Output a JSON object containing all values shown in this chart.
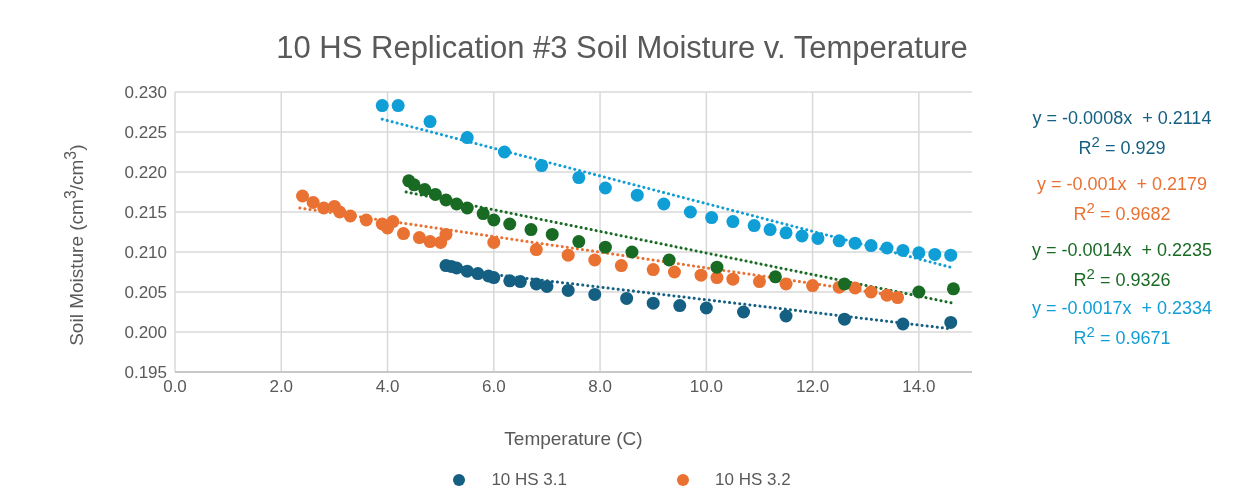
{
  "chart_data": {
    "type": "scatter",
    "title": "10 HS Replication #3 Soil Moisture v. Temperature",
    "xlabel": "Temperature  (C)",
    "ylabel": "Soil Moisture  (cm$^{3}$/cm$^{3}$)",
    "xlim": [
      0,
      15
    ],
    "xticks": [
      {
        "value": 0,
        "label": "0.0"
      },
      {
        "value": 2,
        "label": "2.0"
      },
      {
        "value": 4,
        "label": "4.0"
      },
      {
        "value": 6,
        "label": "6.0"
      },
      {
        "value": 8,
        "label": "8.0"
      },
      {
        "value": 10,
        "label": "10.0"
      },
      {
        "value": 12,
        "label": "12.0"
      },
      {
        "value": 14,
        "label": "14.0"
      }
    ],
    "ylim": [
      0.195,
      0.23
    ],
    "yticks": [
      {
        "value": 0.195,
        "label": "0.195"
      },
      {
        "value": 0.2,
        "label": "0.200"
      },
      {
        "value": 0.205,
        "label": "0.205"
      },
      {
        "value": 0.21,
        "label": "0.210"
      },
      {
        "value": 0.215,
        "label": "0.215"
      },
      {
        "value": 0.22,
        "label": "0.220"
      },
      {
        "value": 0.225,
        "label": "0.225"
      },
      {
        "value": 0.23,
        "label": "0.230"
      }
    ],
    "grid": true,
    "legend": "bottom",
    "marker": "circle",
    "series": [
      {
        "name": "10 HS 3.1",
        "color": "#156082",
        "x": [
          5.1,
          5.2,
          5.3,
          5.5,
          5.7,
          5.9,
          6.0,
          6.3,
          6.5,
          6.8,
          7.0,
          7.4,
          7.9,
          8.5,
          9.0,
          9.5,
          10.0,
          10.7,
          11.5,
          12.6,
          13.7,
          14.6
        ],
        "values": [
          0.2083,
          0.2082,
          0.208,
          0.2076,
          0.2073,
          0.207,
          0.2068,
          0.2064,
          0.2063,
          0.206,
          0.2057,
          0.2052,
          0.2047,
          0.2042,
          0.2036,
          0.2033,
          0.203,
          0.2025,
          0.202,
          0.2016,
          0.201,
          0.2012
        ]
      },
      {
        "name": "10 HS 3.2",
        "color": "#e97132",
        "x": [
          2.4,
          2.6,
          2.8,
          3.0,
          3.1,
          3.3,
          3.6,
          3.9,
          4.0,
          4.1,
          4.3,
          4.6,
          4.8,
          5.0,
          5.1,
          6.0,
          6.8,
          7.4,
          7.9,
          8.4,
          9.0,
          9.4,
          9.9,
          10.2,
          10.5,
          11.0,
          11.5,
          12.0,
          12.5,
          12.8,
          13.1,
          13.4,
          13.6
        ],
        "values": [
          0.217,
          0.2162,
          0.2155,
          0.2157,
          0.215,
          0.2145,
          0.214,
          0.2135,
          0.213,
          0.2138,
          0.2123,
          0.2118,
          0.2113,
          0.2112,
          0.2122,
          0.2112,
          0.2103,
          0.2096,
          0.209,
          0.2083,
          0.2078,
          0.2075,
          0.2071,
          0.2068,
          0.2066,
          0.2063,
          0.206,
          0.2058,
          0.2056,
          0.2055,
          0.205,
          0.2046,
          0.2043
        ]
      },
      {
        "color": "#196b24",
        "x": [
          4.4,
          4.5,
          4.7,
          4.9,
          5.1,
          5.3,
          5.5,
          5.8,
          6.0,
          6.3,
          6.7,
          7.1,
          7.6,
          8.1,
          8.6,
          9.3,
          10.2,
          11.3,
          12.6,
          14.0,
          14.65
        ],
        "values": [
          0.2189,
          0.2184,
          0.2178,
          0.2172,
          0.2165,
          0.216,
          0.2155,
          0.2148,
          0.214,
          0.2135,
          0.2128,
          0.2122,
          0.2113,
          0.2106,
          0.21,
          0.209,
          0.2081,
          0.2069,
          0.206,
          0.205,
          0.2054
        ]
      },
      {
        "color": "#0f9ed5",
        "x": [
          3.9,
          4.2,
          4.8,
          5.5,
          6.2,
          6.9,
          7.6,
          8.1,
          8.7,
          9.2,
          9.7,
          10.1,
          10.5,
          10.9,
          11.2,
          11.5,
          11.8,
          12.1,
          12.5,
          12.8,
          13.1,
          13.4,
          13.7,
          14.0,
          14.3,
          14.6
        ],
        "values": [
          0.2283,
          0.2283,
          0.2263,
          0.2243,
          0.2225,
          0.2208,
          0.2193,
          0.218,
          0.2171,
          0.216,
          0.215,
          0.2143,
          0.2138,
          0.2133,
          0.2128,
          0.2124,
          0.212,
          0.2117,
          0.2114,
          0.2111,
          0.2108,
          0.2105,
          0.2102,
          0.2099,
          0.2097,
          0.2096
        ]
      },
      {
        "type": "line",
        "line_style": "dotted",
        "marker": "none",
        "color": "#156082",
        "x": [
          5.1,
          14.6
        ],
        "values": [
          0.2079,
          0.2004
        ]
      },
      {
        "type": "line",
        "line_style": "dotted",
        "marker": "none",
        "color": "#e97132",
        "x": [
          2.35,
          13.6
        ],
        "values": [
          0.2155,
          0.2045
        ]
      },
      {
        "type": "line",
        "line_style": "dotted",
        "marker": "none",
        "color": "#196b24",
        "x": [
          4.35,
          14.65
        ],
        "values": [
          0.2175,
          0.2036
        ]
      },
      {
        "type": "line",
        "line_style": "dotted",
        "marker": "none",
        "color": "#0f9ed5",
        "x": [
          3.9,
          14.65
        ],
        "values": [
          0.2266,
          0.208
        ]
      }
    ],
    "annotations": [
      "y = -0.0008x  + 0.2114",
      "R$^{2}$ = 0.929",
      "y = -0.001x  + 0.2179",
      "R$^{2}$ = 0.9682",
      "y = -0.0014x  + 0.2235",
      "R$^{2}$ = 0.9326",
      "y = -0.0017x  + 0.2334",
      "R$^{2}$ = 0.9671"
    ]
  }
}
